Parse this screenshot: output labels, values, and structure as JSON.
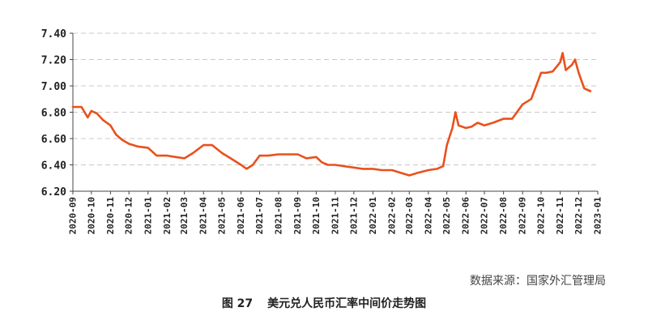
{
  "chart_data": {
    "type": "line",
    "title": "",
    "xlabel": "",
    "ylabel": "",
    "ylim": [
      6.2,
      7.4
    ],
    "yticks": [
      "7.40",
      "7.20",
      "7.00",
      "6.80",
      "6.60",
      "6.40",
      "6.20"
    ],
    "xticks": [
      "2020-09",
      "2020-10",
      "2020-11",
      "2020-12",
      "2021-01",
      "2021-02",
      "2021-03",
      "2021-04",
      "2021-05",
      "2021-06",
      "2021-07",
      "2021-08",
      "2021-09",
      "2021-10",
      "2021-11",
      "2021-12",
      "2022-01",
      "2022-02",
      "2022-03",
      "2022-04",
      "2022-05",
      "2022-06",
      "2022-07",
      "2022-08",
      "2022-09",
      "2022-10",
      "2022-11",
      "2022-12",
      "2023-01"
    ],
    "grid": "horizontal-dashed",
    "legend": "none",
    "line_color": "#e8511b",
    "series": [
      {
        "x": [
          "2020-09-01",
          "2020-09-15",
          "2020-09-25",
          "2020-10-01",
          "2020-10-10",
          "2020-10-20",
          "2020-11-01",
          "2020-11-10",
          "2020-11-20",
          "2020-12-01",
          "2020-12-15",
          "2021-01-01",
          "2021-01-15",
          "2021-02-01",
          "2021-02-15",
          "2021-03-01",
          "2021-03-15",
          "2021-04-01",
          "2021-04-15",
          "2021-05-01",
          "2021-05-15",
          "2021-06-01",
          "2021-06-10",
          "2021-06-20",
          "2021-07-01",
          "2021-07-15",
          "2021-08-01",
          "2021-08-15",
          "2021-09-01",
          "2021-09-15",
          "2021-10-01",
          "2021-10-10",
          "2021-10-20",
          "2021-11-01",
          "2021-11-15",
          "2021-12-01",
          "2021-12-15",
          "2022-01-01",
          "2022-01-15",
          "2022-02-01",
          "2022-02-15",
          "2022-03-01",
          "2022-03-15",
          "2022-04-01",
          "2022-04-15",
          "2022-04-25",
          "2022-05-01",
          "2022-05-10",
          "2022-05-15",
          "2022-05-20",
          "2022-06-01",
          "2022-06-10",
          "2022-06-20",
          "2022-07-01",
          "2022-07-15",
          "2022-08-01",
          "2022-08-15",
          "2022-09-01",
          "2022-09-15",
          "2022-10-01",
          "2022-10-10",
          "2022-10-20",
          "2022-11-01",
          "2022-11-05",
          "2022-11-10",
          "2022-11-15",
          "2022-11-20",
          "2022-11-25",
          "2022-12-01",
          "2022-12-10",
          "2022-12-20"
        ],
        "values": [
          6.84,
          6.84,
          6.76,
          6.81,
          6.79,
          6.74,
          6.7,
          6.63,
          6.59,
          6.56,
          6.54,
          6.53,
          6.47,
          6.47,
          6.46,
          6.45,
          6.49,
          6.55,
          6.55,
          6.49,
          6.45,
          6.4,
          6.37,
          6.4,
          6.47,
          6.47,
          6.48,
          6.48,
          6.48,
          6.45,
          6.46,
          6.42,
          6.4,
          6.4,
          6.39,
          6.38,
          6.37,
          6.37,
          6.36,
          6.36,
          6.34,
          6.32,
          6.34,
          6.36,
          6.37,
          6.39,
          6.55,
          6.68,
          6.8,
          6.7,
          6.68,
          6.69,
          6.72,
          6.7,
          6.72,
          6.75,
          6.75,
          6.86,
          6.9,
          7.1,
          7.1,
          7.11,
          7.18,
          7.25,
          7.12,
          7.14,
          7.16,
          7.2,
          7.1,
          6.98,
          6.96
        ]
      }
    ]
  },
  "footer": {
    "source": "数据来源：国家外汇管理局",
    "caption_number": "图 27",
    "caption_title": "美元兑人民币汇率中间价走势图"
  }
}
